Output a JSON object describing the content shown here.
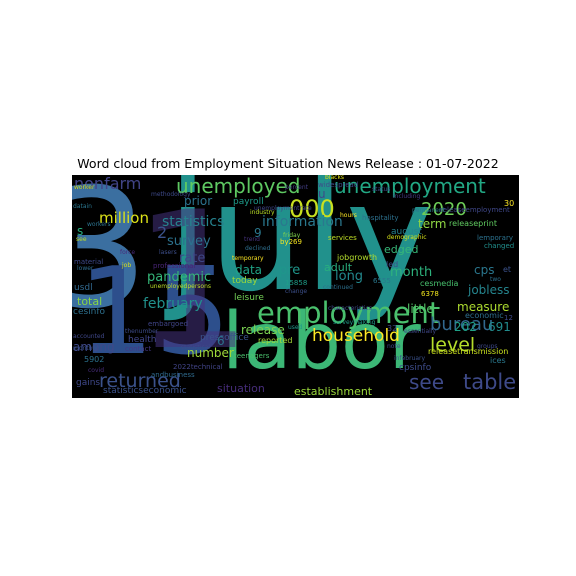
{
  "title": "Word cloud from Employment Situation News Release : 01-07-2022",
  "words": [
    {
      "text": "july",
      "color": "#21918c"
    },
    {
      "text": "3",
      "color": "#3b6fa0"
    },
    {
      "text": "labor",
      "color": "#3cb776"
    },
    {
      "text": "15",
      "color": "#2d4f8c"
    },
    {
      "text": "1",
      "color": "#46337e"
    },
    {
      "text": "employment",
      "color": "#4ac16d"
    },
    {
      "text": "unemployed",
      "color": "#5ec962"
    },
    {
      "text": "unemployment",
      "color": "#22a884"
    },
    {
      "text": "nonfarm",
      "color": "#414487"
    },
    {
      "text": "returned",
      "color": "#3b528b"
    },
    {
      "text": "household",
      "color": "#fde725"
    },
    {
      "text": "bureau",
      "color": "#31688e"
    },
    {
      "text": "level",
      "color": "#b5de2b"
    },
    {
      "text": "see",
      "color": "#3e4a89"
    },
    {
      "text": "table",
      "color": "#3e4a89"
    },
    {
      "text": "000",
      "color": "#c8e020"
    },
    {
      "text": "2020",
      "color": "#6ece58"
    },
    {
      "text": "statistics",
      "color": "#26828e"
    },
    {
      "text": "information",
      "color": "#2a788e"
    },
    {
      "text": "million",
      "color": "#dde318"
    },
    {
      "text": "survey",
      "color": "#2c728e"
    },
    {
      "text": "pandemic",
      "color": "#35b779"
    },
    {
      "text": "february",
      "color": "#21918c"
    },
    {
      "text": "rate",
      "color": "#3f4889"
    },
    {
      "text": "prior",
      "color": "#2c728e"
    },
    {
      "text": "total",
      "color": "#86d549"
    },
    {
      "text": "among",
      "color": "#3e4989"
    },
    {
      "text": "number",
      "color": "#9fda3a"
    },
    {
      "text": "jobless",
      "color": "#25858e"
    },
    {
      "text": "measure",
      "color": "#addc30"
    },
    {
      "text": "202",
      "color": "#1fa187"
    },
    {
      "text": "691",
      "color": "#228c8d"
    },
    {
      "text": "edged",
      "color": "#37b878"
    },
    {
      "text": "month",
      "color": "#2db27d"
    },
    {
      "text": "term",
      "color": "#8fd744"
    },
    {
      "text": "cps",
      "color": "#2a778e"
    },
    {
      "text": "data",
      "color": "#20a386"
    },
    {
      "text": "pre",
      "color": "#1f968b"
    },
    {
      "text": "release",
      "color": "#7ad151"
    },
    {
      "text": "long",
      "color": "#23898e"
    },
    {
      "text": "adult",
      "color": "#29af7f"
    },
    {
      "text": "little",
      "color": "#54c568"
    },
    {
      "text": "situation",
      "color": "#472d7b"
    },
    {
      "text": "establishment",
      "color": "#9bd93c"
    },
    {
      "text": "august",
      "color": "#26828e"
    },
    {
      "text": "leisure",
      "color": "#73d056"
    },
    {
      "text": "today",
      "color": "#9dd93b"
    },
    {
      "text": "payroll",
      "color": "#1e9b8a"
    },
    {
      "text": "pressoffice",
      "color": "#3b528b"
    },
    {
      "text": "health",
      "color": "#404688"
    },
    {
      "text": "usdl",
      "color": "#31688e"
    },
    {
      "text": "gains",
      "color": "#3f4889"
    },
    {
      "text": "cesinfo",
      "color": "#2d708e"
    },
    {
      "text": "5902",
      "color": "#2c728e"
    },
    {
      "text": "6378",
      "color": "#f1e51d"
    },
    {
      "text": "15858",
      "color": "#1f9e89"
    },
    {
      "text": "6555",
      "color": "#2a788e"
    },
    {
      "text": "economic",
      "color": "#2e6e8e"
    },
    {
      "text": "cesmedia",
      "color": "#48c16e"
    },
    {
      "text": "jobgrowth",
      "color": "#b2dd2d"
    },
    {
      "text": "services",
      "color": "#c0df25"
    },
    {
      "text": "statisticseconomic",
      "color": "#3b528b"
    },
    {
      "text": "releasetransmission",
      "color": "#cae11f"
    },
    {
      "text": "releaseprint",
      "color": "#60ca60"
    },
    {
      "text": "releaseemployment",
      "color": "#3f4788"
    },
    {
      "text": "cpsinfo",
      "color": "#3e4c8a"
    },
    {
      "text": "embargoed",
      "color": "#404588"
    },
    {
      "text": "andbusiness",
      "color": "#2f6b8e"
    },
    {
      "text": "2022technical",
      "color": "#414487"
    },
    {
      "text": "professional",
      "color": "#482576"
    },
    {
      "text": "hospitality",
      "color": "#2d718e"
    },
    {
      "text": "unemploymentrate",
      "color": "#3f4788"
    },
    {
      "text": "industry",
      "color": "#bade28"
    },
    {
      "text": "friday",
      "color": "#7fd34e"
    },
    {
      "text": "trend",
      "color": "#46337e"
    },
    {
      "text": "declined",
      "color": "#2e6f8e"
    },
    {
      "text": "temporary",
      "color": "#fde725"
    },
    {
      "text": "lasers",
      "color": "#3d4e8a"
    },
    {
      "text": "material",
      "color": "#3e4989"
    },
    {
      "text": "workers",
      "color": "#2c728e"
    },
    {
      "text": "see",
      "color": "#bddf26"
    },
    {
      "text": "job",
      "color": "#d8e219"
    },
    {
      "text": "force",
      "color": "#482979"
    },
    {
      "text": "thenumber",
      "color": "#3e4c8a"
    },
    {
      "text": "contact",
      "color": "#443983"
    },
    {
      "text": "covid",
      "color": "#472c7a"
    },
    {
      "text": "accounted",
      "color": "#3f4788"
    },
    {
      "text": "monthly",
      "color": "#3b528b"
    },
    {
      "text": "methodology",
      "color": "#3e4a89"
    },
    {
      "text": "worker",
      "color": "#c5e021"
    },
    {
      "text": "datain",
      "color": "#2a768e"
    },
    {
      "text": "lower",
      "color": "#2f6c8e"
    },
    {
      "text": "hours",
      "color": "#fde725"
    },
    {
      "text": "demographic",
      "color": "#d5e21a"
    },
    {
      "text": "changed",
      "color": "#21908d"
    },
    {
      "text": "permanent",
      "color": "#2a788e"
    },
    {
      "text": "reported",
      "color": "#a5db36"
    },
    {
      "text": "used",
      "color": "#1f998a"
    },
    {
      "text": "continued",
      "color": "#2d708e"
    },
    {
      "text": "change",
      "color": "#3c4f8a"
    },
    {
      "text": "blacks",
      "color": "#e2e418"
    },
    {
      "text": "including",
      "color": "#443a83"
    },
    {
      "text": "widespread",
      "color": "#3e4c8a"
    },
    {
      "text": "percent",
      "color": "#433e85"
    },
    {
      "text": "teenagers",
      "color": "#4ac16d"
    },
    {
      "text": "essentially",
      "color": "#3f4788"
    },
    {
      "text": "infebruary",
      "color": "#3b528b"
    },
    {
      "text": "characteristics",
      "color": "#3e4989"
    },
    {
      "text": "surveymaking",
      "color": "#1f9e89"
    },
    {
      "text": "statistical",
      "color": "#3e4989"
    },
    {
      "text": "by269",
      "color": "#f6e620"
    },
    {
      "text": "unemployedpersons",
      "color": "#bddf26"
    },
    {
      "text": "status",
      "color": "#3e4c8a"
    },
    {
      "text": "u",
      "color": "#3e4989"
    },
    {
      "text": "s",
      "color": "#29af7f"
    },
    {
      "text": "2",
      "color": "#3b528b"
    },
    {
      "text": "6",
      "color": "#2c728e"
    },
    {
      "text": "9",
      "color": "#2a788e"
    },
    {
      "text": "30",
      "color": "#fde725"
    },
    {
      "text": "32",
      "color": "#3f4889"
    },
    {
      "text": "led",
      "color": "#3e4c8a"
    },
    {
      "text": "two",
      "color": "#2d708e"
    },
    {
      "text": "et",
      "color": "#3b528b"
    },
    {
      "text": "ices",
      "color": "#2a788e"
    },
    {
      "text": "12",
      "color": "#3e4989"
    },
    {
      "text": "note",
      "color": "#3e4c8a"
    },
    {
      "text": "groups",
      "color": "#3e4989"
    },
    {
      "text": "lemporary",
      "color": "#2c728e"
    }
  ]
}
